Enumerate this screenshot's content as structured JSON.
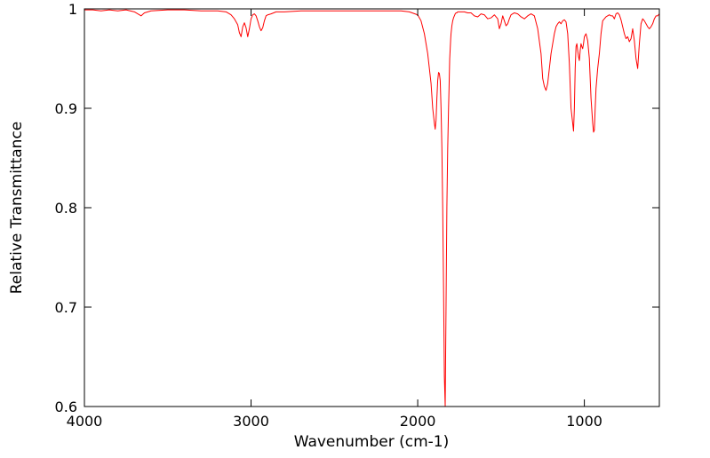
{
  "chart_data": {
    "type": "line",
    "title": "",
    "xlabel": "Wavenumber (cm-1)",
    "ylabel": "Relative Transmittance",
    "xlim": [
      4000,
      550
    ],
    "ylim": [
      0.6,
      1.0
    ],
    "x_ticks": [
      4000,
      3000,
      2000,
      1000
    ],
    "x_tick_labels": [
      "4000",
      "3000",
      "2000",
      "1000"
    ],
    "y_ticks": [
      0.6,
      0.7,
      0.8,
      0.9,
      1.0
    ],
    "y_tick_labels": [
      "0.6",
      "0.7",
      "0.8",
      "0.9",
      "1"
    ],
    "grid": false,
    "series": [
      {
        "color": "#ff0000",
        "x": [
          4000,
          3950,
          3900,
          3850,
          3800,
          3750,
          3700,
          3680,
          3660,
          3640,
          3600,
          3500,
          3400,
          3300,
          3200,
          3150,
          3120,
          3100,
          3080,
          3070,
          3060,
          3050,
          3040,
          3030,
          3020,
          3010,
          3000,
          2990,
          2980,
          2970,
          2960,
          2950,
          2940,
          2930,
          2920,
          2910,
          2900,
          2880,
          2850,
          2800,
          2700,
          2600,
          2500,
          2400,
          2300,
          2200,
          2100,
          2050,
          2000,
          1980,
          1960,
          1940,
          1920,
          1910,
          1900,
          1895,
          1890,
          1885,
          1880,
          1875,
          1870,
          1865,
          1860,
          1855,
          1850,
          1845,
          1840,
          1835,
          1830,
          1825,
          1820,
          1815,
          1812,
          1810,
          1808,
          1805,
          1802,
          1800,
          1795,
          1790,
          1785,
          1780,
          1775,
          1770,
          1765,
          1760,
          1750,
          1740,
          1720,
          1700,
          1680,
          1660,
          1640,
          1620,
          1600,
          1580,
          1560,
          1540,
          1520,
          1510,
          1500,
          1490,
          1480,
          1470,
          1460,
          1450,
          1440,
          1420,
          1400,
          1380,
          1360,
          1340,
          1320,
          1300,
          1280,
          1260,
          1250,
          1240,
          1230,
          1220,
          1210,
          1200,
          1190,
          1180,
          1170,
          1160,
          1150,
          1140,
          1130,
          1120,
          1110,
          1100,
          1090,
          1080,
          1070,
          1065,
          1060,
          1055,
          1050,
          1045,
          1040,
          1035,
          1030,
          1025,
          1020,
          1015,
          1010,
          1005,
          1000,
          990,
          980,
          970,
          960,
          950,
          945,
          940,
          935,
          930,
          925,
          920,
          910,
          900,
          890,
          880,
          870,
          860,
          850,
          840,
          830,
          820,
          810,
          800,
          790,
          780,
          770,
          760,
          750,
          740,
          730,
          720,
          710,
          700,
          690,
          680,
          670,
          660,
          650,
          640,
          630,
          620,
          610,
          600,
          590,
          580,
          570,
          560,
          550
        ],
        "y": [
          0.999,
          0.999,
          0.998,
          0.999,
          0.998,
          0.999,
          0.997,
          0.995,
          0.993,
          0.996,
          0.998,
          0.999,
          0.999,
          0.998,
          0.998,
          0.997,
          0.994,
          0.99,
          0.984,
          0.976,
          0.972,
          0.982,
          0.986,
          0.981,
          0.972,
          0.98,
          0.99,
          0.994,
          0.995,
          0.993,
          0.988,
          0.982,
          0.978,
          0.981,
          0.988,
          0.993,
          0.994,
          0.995,
          0.997,
          0.997,
          0.998,
          0.998,
          0.998,
          0.998,
          0.998,
          0.998,
          0.998,
          0.997,
          0.994,
          0.988,
          0.975,
          0.955,
          0.925,
          0.9,
          0.885,
          0.879,
          0.888,
          0.91,
          0.928,
          0.936,
          0.935,
          0.928,
          0.9,
          0.86,
          0.8,
          0.72,
          0.63,
          0.6,
          0.7,
          0.8,
          0.86,
          0.9,
          0.92,
          0.935,
          0.95,
          0.96,
          0.97,
          0.975,
          0.983,
          0.988,
          0.991,
          0.993,
          0.995,
          0.996,
          0.996,
          0.997,
          0.997,
          0.997,
          0.997,
          0.996,
          0.996,
          0.993,
          0.992,
          0.995,
          0.994,
          0.99,
          0.991,
          0.994,
          0.99,
          0.98,
          0.985,
          0.993,
          0.988,
          0.983,
          0.985,
          0.99,
          0.994,
          0.996,
          0.995,
          0.992,
          0.99,
          0.993,
          0.995,
          0.993,
          0.98,
          0.955,
          0.93,
          0.922,
          0.918,
          0.925,
          0.94,
          0.955,
          0.965,
          0.975,
          0.982,
          0.985,
          0.987,
          0.985,
          0.988,
          0.989,
          0.987,
          0.975,
          0.945,
          0.9,
          0.885,
          0.877,
          0.9,
          0.94,
          0.962,
          0.965,
          0.958,
          0.952,
          0.948,
          0.958,
          0.965,
          0.962,
          0.96,
          0.965,
          0.972,
          0.975,
          0.968,
          0.95,
          0.91,
          0.885,
          0.876,
          0.878,
          0.9,
          0.92,
          0.93,
          0.94,
          0.955,
          0.975,
          0.988,
          0.99,
          0.992,
          0.993,
          0.994,
          0.993,
          0.993,
          0.99,
          0.995,
          0.996,
          0.994,
          0.989,
          0.982,
          0.975,
          0.97,
          0.972,
          0.967,
          0.97,
          0.98,
          0.968,
          0.95,
          0.94,
          0.965,
          0.985,
          0.99,
          0.988,
          0.985,
          0.982,
          0.98,
          0.982,
          0.985,
          0.99,
          0.993,
          0.993,
          0.995
        ]
      }
    ]
  }
}
